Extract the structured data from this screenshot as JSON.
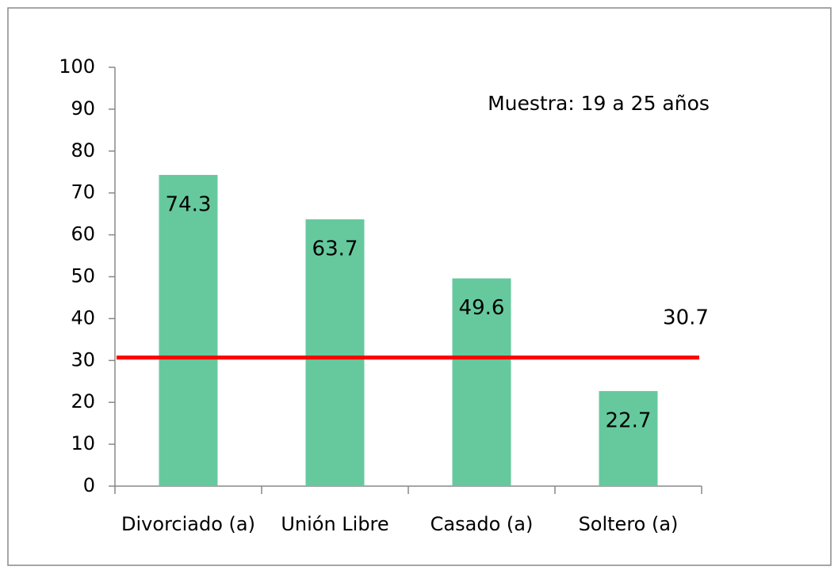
{
  "chart_data": {
    "type": "bar",
    "categories": [
      "Divorciado (a)",
      "Unión Libre",
      "Casado (a)",
      "Soltero (a)"
    ],
    "values": [
      74.3,
      63.7,
      49.6,
      22.7
    ],
    "color": "#66c99e",
    "ylim": [
      0,
      100
    ],
    "yticks": [
      0,
      10,
      20,
      30,
      40,
      50,
      60,
      70,
      80,
      90,
      100
    ],
    "grid": false,
    "reference_line": {
      "value": 30.7,
      "color": "#ff0000"
    },
    "annotation": "Muestra: 19 a 25 años"
  }
}
